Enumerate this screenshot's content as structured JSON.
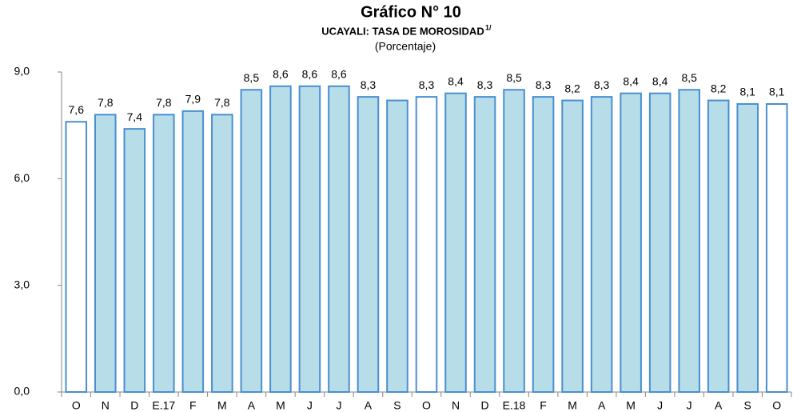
{
  "chart_data": {
    "type": "bar",
    "title": "Gráfico N° 10",
    "subtitle": "UCAYALI: TASA DE MOROSIDAD",
    "subtitle_note": "1/",
    "unit_label": "(Porcentaje)",
    "categories": [
      "O",
      "N",
      "D",
      "E.17",
      "F",
      "M",
      "A",
      "M",
      "J",
      "J",
      "A",
      "S",
      "O",
      "N",
      "D",
      "E.18",
      "F",
      "M",
      "A",
      "M",
      "J",
      "J",
      "A",
      "S",
      "O"
    ],
    "values": [
      7.6,
      7.8,
      7.4,
      7.8,
      7.9,
      7.8,
      8.5,
      8.6,
      8.6,
      8.6,
      8.3,
      8.2,
      8.3,
      8.4,
      8.3,
      8.5,
      8.3,
      8.2,
      8.3,
      8.4,
      8.4,
      8.5,
      8.2,
      8.1,
      8.1
    ],
    "value_labels": [
      "7,6",
      "7,8",
      "7,4",
      "7,8",
      "7,9",
      "7,8",
      "8,5",
      "8,6",
      "8,6",
      "8,6",
      "8,3",
      null,
      "8,3",
      "8,4",
      "8,3",
      "8,5",
      "8,3",
      "8,2",
      "8,3",
      "8,4",
      "8,4",
      "8,5",
      "8,2",
      "8,1",
      "8,1"
    ],
    "colors": [
      "#ffffff",
      "#b7dde8",
      "#b7dde8",
      "#b7dde8",
      "#b7dde8",
      "#b7dde8",
      "#b7dde8",
      "#b7dde8",
      "#b7dde8",
      "#b7dde8",
      "#b7dde8",
      "#b7dde8",
      "#ffffff",
      "#b7dde8",
      "#b7dde8",
      "#b7dde8",
      "#b7dde8",
      "#b7dde8",
      "#b7dde8",
      "#b7dde8",
      "#b7dde8",
      "#b7dde8",
      "#b7dde8",
      "#b7dde8",
      "#ffffff"
    ],
    "edge_color": "#4a8fd0",
    "ylim": [
      0,
      9
    ],
    "yticks": [
      {
        "value": 0,
        "label": "0,0"
      },
      {
        "value": 3,
        "label": "3,0"
      },
      {
        "value": 6,
        "label": "6,0"
      },
      {
        "value": 9,
        "label": "9,0"
      }
    ],
    "grid": false
  }
}
